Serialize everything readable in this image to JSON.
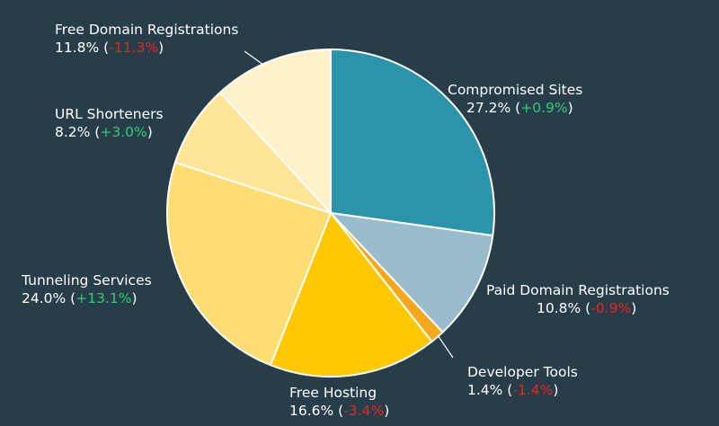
{
  "theme": {
    "background": "#273d4a",
    "label_color": "#ffffff",
    "positive_color": "#2ecc71",
    "negative_color": "#e8261f"
  },
  "chart_data": {
    "type": "pie",
    "start_angle_deg": 0,
    "direction": "clockwise",
    "slices": [
      {
        "name": "Compromised Sites",
        "value": 27.2,
        "value_label": "27.2%",
        "change": "+0.9%",
        "change_sign": "positive",
        "color": "#2b94aa"
      },
      {
        "name": "Paid Domain Registrations",
        "value": 10.8,
        "value_label": "10.8%",
        "change": "-0.9%",
        "change_sign": "negative",
        "color": "#98bccb"
      },
      {
        "name": "Developer Tools",
        "value": 1.4,
        "value_label": "1.4%",
        "change": "-1.4%",
        "change_sign": "negative",
        "color": "#f5a81c"
      },
      {
        "name": "Free Hosting",
        "value": 16.6,
        "value_label": "16.6%",
        "change": "-3.4%",
        "change_sign": "negative",
        "color": "#ffc800"
      },
      {
        "name": "Tunneling Services",
        "value": 24.0,
        "value_label": "24.0%",
        "change": "+13.1%",
        "change_sign": "positive",
        "color": "#ffdd72"
      },
      {
        "name": "URL Shorteners",
        "value": 8.2,
        "value_label": "8.2%",
        "change": "+3.0%",
        "change_sign": "positive",
        "color": "#ffe598"
      },
      {
        "name": "Free Domain Registrations",
        "value": 11.8,
        "value_label": "11.8%",
        "change": "-11.3%",
        "change_sign": "negative",
        "color": "#fff2ca"
      }
    ]
  }
}
